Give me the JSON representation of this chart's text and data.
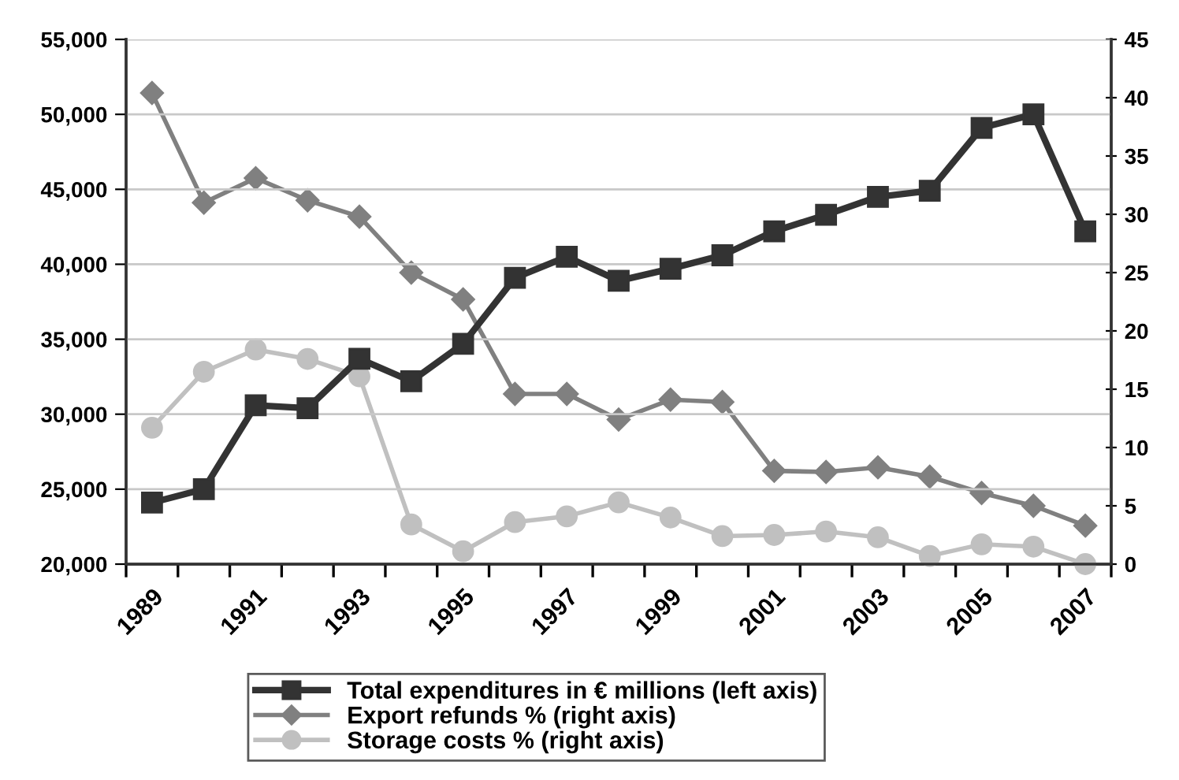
{
  "chart_data": {
    "type": "line",
    "categories": [
      "1989",
      null,
      "1991",
      null,
      "1993",
      null,
      "1995",
      null,
      "1997",
      null,
      "1999",
      null,
      "2001",
      null,
      "2003",
      null,
      "2005",
      null,
      "2007"
    ],
    "series": [
      {
        "name": "Total expenditures in € millions (left axis)",
        "color": "#333333",
        "marker": "square",
        "values": [
          24100,
          25000,
          30600,
          30400,
          33700,
          32200,
          34700,
          39100,
          40500,
          38900,
          39700,
          40600,
          42200,
          43300,
          44500,
          44900,
          49100,
          50000,
          42200
        ]
      },
      {
        "name": "Export refunds % (right axis)",
        "color": "#808080",
        "marker": "diamond",
        "axis": "y2",
        "values": [
          40.4,
          31.0,
          33.1,
          31.2,
          29.8,
          25.0,
          22.7,
          14.6,
          14.6,
          12.4,
          14.1,
          13.9,
          8.0,
          7.9,
          8.3,
          7.5,
          6.1,
          5.0,
          3.3
        ]
      },
      {
        "name": "Storage costs % (right axis)",
        "color": "#c0c0c0",
        "marker": "circle",
        "axis": "y2",
        "values": [
          11.7,
          16.5,
          18.4,
          17.6,
          16.1,
          3.4,
          1.1,
          3.6,
          4.1,
          5.3,
          4.0,
          2.4,
          2.5,
          2.8,
          2.3,
          0.7,
          1.7,
          1.5,
          0
        ]
      }
    ],
    "ylim": [
      20000,
      55000
    ],
    "yticks": [
      {
        "value": 20000,
        "label": "20,000"
      },
      {
        "value": 25000,
        "label": "25,000"
      },
      {
        "value": 30000,
        "label": "30,000"
      },
      {
        "value": 35000,
        "label": "35,000"
      },
      {
        "value": 40000,
        "label": "40,000"
      },
      {
        "value": 45000,
        "label": "45,000"
      },
      {
        "value": 50000,
        "label": "50,000"
      },
      {
        "value": 55000,
        "label": "55,000"
      }
    ],
    "y2lim": [
      0,
      45
    ],
    "y2ticks": [
      0,
      5,
      10,
      15,
      20,
      25,
      30,
      35,
      40,
      45
    ],
    "grid": "y",
    "legend": "bottom",
    "line_style": "solid"
  }
}
